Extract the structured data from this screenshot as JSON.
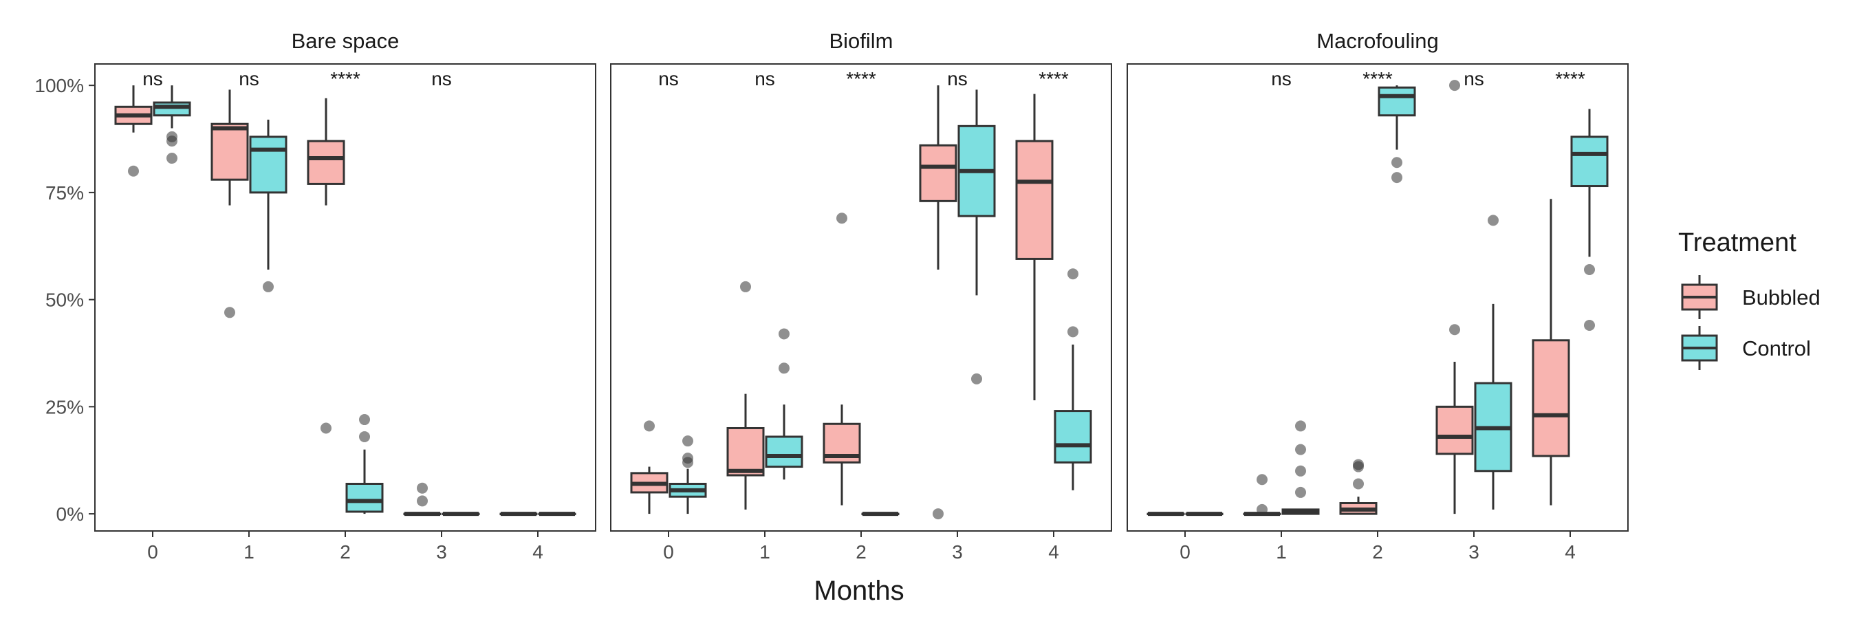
{
  "chart_data": {
    "type": "boxplot",
    "xlabel": "Months",
    "ylabel": "",
    "ylim": [
      -0.04,
      1.05
    ],
    "y_ticks": [
      {
        "value": 0,
        "label": "0%"
      },
      {
        "value": 0.25,
        "label": "25%"
      },
      {
        "value": 0.5,
        "label": "50%"
      },
      {
        "value": 0.75,
        "label": "75%"
      },
      {
        "value": 1,
        "label": "100%"
      }
    ],
    "categories": [
      "0",
      "1",
      "2",
      "3",
      "4"
    ],
    "legend": {
      "title": "Treatment",
      "position": "right",
      "entries": [
        {
          "name": "Bubbled",
          "color": "#F8B4B0"
        },
        {
          "name": "Control",
          "color": "#7DDFE0"
        }
      ]
    },
    "grid": false,
    "panels": [
      {
        "title": "Bare space",
        "significance": [
          {
            "month": "0",
            "label": "ns"
          },
          {
            "month": "1",
            "label": "ns"
          },
          {
            "month": "2",
            "label": "****"
          },
          {
            "month": "3",
            "label": "ns"
          }
        ],
        "series": [
          {
            "name": "Bubbled",
            "boxes": [
              {
                "month": "0",
                "lower_whisker": 0.89,
                "q1": 0.91,
                "median": 0.93,
                "q3": 0.95,
                "upper_whisker": 1.0,
                "outliers": [
                  0.8
                ]
              },
              {
                "month": "1",
                "lower_whisker": 0.72,
                "q1": 0.78,
                "median": 0.9,
                "q3": 0.91,
                "upper_whisker": 0.99,
                "outliers": [
                  0.47
                ]
              },
              {
                "month": "2",
                "lower_whisker": 0.72,
                "q1": 0.77,
                "median": 0.83,
                "q3": 0.87,
                "upper_whisker": 0.97,
                "outliers": [
                  0.2
                ]
              },
              {
                "month": "3",
                "lower_whisker": 0.0,
                "q1": 0.0,
                "median": 0.0,
                "q3": 0.0,
                "upper_whisker": 0.0,
                "outliers": [
                  0.06,
                  0.03
                ]
              },
              {
                "month": "4",
                "lower_whisker": 0.0,
                "q1": 0.0,
                "median": 0.0,
                "q3": 0.0,
                "upper_whisker": 0.0,
                "outliers": []
              }
            ]
          },
          {
            "name": "Control",
            "boxes": [
              {
                "month": "0",
                "lower_whisker": 0.9,
                "q1": 0.93,
                "median": 0.95,
                "q3": 0.96,
                "upper_whisker": 1.0,
                "outliers": [
                  0.88,
                  0.87,
                  0.83
                ]
              },
              {
                "month": "1",
                "lower_whisker": 0.57,
                "q1": 0.75,
                "median": 0.85,
                "q3": 0.88,
                "upper_whisker": 0.92,
                "outliers": [
                  0.53
                ]
              },
              {
                "month": "2",
                "lower_whisker": 0.0,
                "q1": 0.005,
                "median": 0.03,
                "q3": 0.07,
                "upper_whisker": 0.15,
                "outliers": [
                  0.22,
                  0.18
                ]
              },
              {
                "month": "3",
                "lower_whisker": 0.0,
                "q1": 0.0,
                "median": 0.0,
                "q3": 0.0,
                "upper_whisker": 0.0,
                "outliers": []
              },
              {
                "month": "4",
                "lower_whisker": 0.0,
                "q1": 0.0,
                "median": 0.0,
                "q3": 0.0,
                "upper_whisker": 0.0,
                "outliers": []
              }
            ]
          }
        ]
      },
      {
        "title": "Biofilm",
        "significance": [
          {
            "month": "0",
            "label": "ns"
          },
          {
            "month": "1",
            "label": "ns"
          },
          {
            "month": "2",
            "label": "****"
          },
          {
            "month": "3",
            "label": "ns"
          },
          {
            "month": "4",
            "label": "****"
          }
        ],
        "series": [
          {
            "name": "Bubbled",
            "boxes": [
              {
                "month": "0",
                "lower_whisker": 0.0,
                "q1": 0.05,
                "median": 0.07,
                "q3": 0.095,
                "upper_whisker": 0.11,
                "outliers": [
                  0.205
                ]
              },
              {
                "month": "1",
                "lower_whisker": 0.01,
                "q1": 0.09,
                "median": 0.1,
                "q3": 0.2,
                "upper_whisker": 0.28,
                "outliers": [
                  0.53
                ]
              },
              {
                "month": "2",
                "lower_whisker": 0.02,
                "q1": 0.12,
                "median": 0.135,
                "q3": 0.21,
                "upper_whisker": 0.255,
                "outliers": [
                  0.69
                ]
              },
              {
                "month": "3",
                "lower_whisker": 0.57,
                "q1": 0.73,
                "median": 0.81,
                "q3": 0.86,
                "upper_whisker": 1.0,
                "outliers": [
                  0.0
                ]
              },
              {
                "month": "4",
                "lower_whisker": 0.265,
                "q1": 0.595,
                "median": 0.775,
                "q3": 0.87,
                "upper_whisker": 0.98,
                "outliers": []
              }
            ]
          },
          {
            "name": "Control",
            "boxes": [
              {
                "month": "0",
                "lower_whisker": 0.0,
                "q1": 0.04,
                "median": 0.055,
                "q3": 0.07,
                "upper_whisker": 0.105,
                "outliers": [
                  0.17,
                  0.13,
                  0.12
                ]
              },
              {
                "month": "1",
                "lower_whisker": 0.08,
                "q1": 0.11,
                "median": 0.135,
                "q3": 0.18,
                "upper_whisker": 0.255,
                "outliers": [
                  0.42,
                  0.34
                ]
              },
              {
                "month": "2",
                "lower_whisker": 0.0,
                "q1": 0.0,
                "median": 0.0,
                "q3": 0.0,
                "upper_whisker": 0.0,
                "outliers": []
              },
              {
                "month": "3",
                "lower_whisker": 0.51,
                "q1": 0.695,
                "median": 0.8,
                "q3": 0.905,
                "upper_whisker": 0.99,
                "outliers": [
                  0.315
                ]
              },
              {
                "month": "4",
                "lower_whisker": 0.055,
                "q1": 0.12,
                "median": 0.16,
                "q3": 0.24,
                "upper_whisker": 0.395,
                "outliers": [
                  0.56,
                  0.425
                ]
              }
            ]
          }
        ]
      },
      {
        "title": "Macrofouling",
        "significance": [
          {
            "month": "1",
            "label": "ns"
          },
          {
            "month": "2",
            "label": "****"
          },
          {
            "month": "3",
            "label": "ns"
          },
          {
            "month": "4",
            "label": "****"
          }
        ],
        "series": [
          {
            "name": "Bubbled",
            "boxes": [
              {
                "month": "0",
                "lower_whisker": 0.0,
                "q1": 0.0,
                "median": 0.0,
                "q3": 0.0,
                "upper_whisker": 0.0,
                "outliers": []
              },
              {
                "month": "1",
                "lower_whisker": 0.0,
                "q1": 0.0,
                "median": 0.0,
                "q3": 0.0,
                "upper_whisker": 0.0,
                "outliers": [
                  0.08,
                  0.01
                ]
              },
              {
                "month": "2",
                "lower_whisker": 0.0,
                "q1": 0.0,
                "median": 0.01,
                "q3": 0.025,
                "upper_whisker": 0.04,
                "outliers": [
                  0.115,
                  0.11,
                  0.07
                ]
              },
              {
                "month": "3",
                "lower_whisker": 0.0,
                "q1": 0.14,
                "median": 0.18,
                "q3": 0.25,
                "upper_whisker": 0.355,
                "outliers": [
                  1.0,
                  0.43
                ]
              },
              {
                "month": "4",
                "lower_whisker": 0.02,
                "q1": 0.135,
                "median": 0.23,
                "q3": 0.405,
                "upper_whisker": 0.735,
                "outliers": []
              }
            ]
          },
          {
            "name": "Control",
            "boxes": [
              {
                "month": "0",
                "lower_whisker": 0.0,
                "q1": 0.0,
                "median": 0.0,
                "q3": 0.0,
                "upper_whisker": 0.0,
                "outliers": []
              },
              {
                "month": "1",
                "lower_whisker": 0.0,
                "q1": 0.0,
                "median": 0.005,
                "q3": 0.01,
                "upper_whisker": 0.01,
                "outliers": [
                  0.205,
                  0.15,
                  0.1,
                  0.05
                ]
              },
              {
                "month": "2",
                "lower_whisker": 0.85,
                "q1": 0.93,
                "median": 0.975,
                "q3": 0.995,
                "upper_whisker": 1.0,
                "outliers": [
                  0.82,
                  0.785
                ]
              },
              {
                "month": "3",
                "lower_whisker": 0.01,
                "q1": 0.1,
                "median": 0.2,
                "q3": 0.305,
                "upper_whisker": 0.49,
                "outliers": [
                  0.685
                ]
              },
              {
                "month": "4",
                "lower_whisker": 0.6,
                "q1": 0.765,
                "median": 0.84,
                "q3": 0.88,
                "upper_whisker": 0.945,
                "outliers": [
                  0.57,
                  0.44
                ]
              }
            ]
          }
        ]
      }
    ]
  }
}
